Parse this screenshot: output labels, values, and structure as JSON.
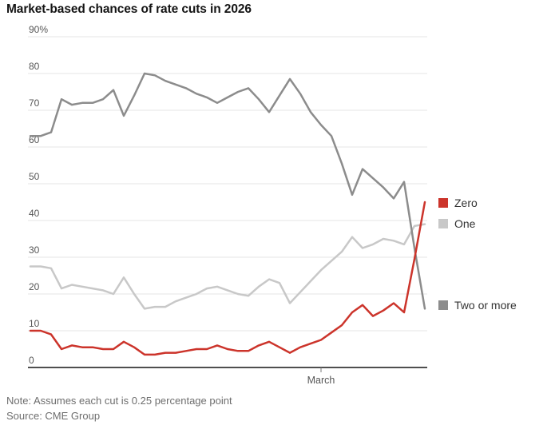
{
  "title": "Market-based chances of rate cuts in 2026",
  "note": "Note: Assumes each cut is 0.25 percentage point",
  "source": "Source: CME Group",
  "legend": {
    "items": [
      {
        "label": "Zero",
        "color": "#cc342b"
      },
      {
        "label": "One",
        "color": "#c8c8c8"
      },
      {
        "label": "Two or more",
        "color": "#8c8c8c"
      }
    ]
  },
  "chart_data": {
    "type": "line",
    "title": "Market-based chances of rate cuts in 2026",
    "ylabel": "",
    "xlabel": "",
    "ylim": [
      0,
      90
    ],
    "y_ticks": [
      0,
      10,
      20,
      30,
      40,
      50,
      60,
      70,
      80,
      90
    ],
    "y_top_tick_suffix": "%",
    "grid": "horizontal",
    "legend_position": "right",
    "n_points": 39,
    "x_tick_labels": [
      {
        "label": "March",
        "index": 28
      }
    ],
    "series": [
      {
        "name": "Zero",
        "color": "#cc342b",
        "values": [
          10,
          10,
          9,
          5,
          6,
          5.5,
          5.5,
          5,
          5,
          7,
          5.5,
          3.5,
          3.5,
          4,
          4,
          4.5,
          5,
          5,
          6,
          5,
          4.5,
          4.5,
          6,
          7,
          5.5,
          4,
          5.5,
          6.5,
          7.5,
          9.5,
          11.5,
          15,
          17,
          14,
          15.5,
          17.5,
          15,
          29.5,
          45
        ]
      },
      {
        "name": "One",
        "color": "#c8c8c8",
        "values": [
          27.5,
          27.5,
          27,
          21.5,
          22.5,
          22,
          21.5,
          21,
          20,
          24.5,
          20,
          16,
          16.5,
          16.5,
          18,
          19,
          20,
          21.5,
          22,
          21,
          20,
          19.5,
          22,
          24,
          23,
          17.5,
          20.5,
          23.5,
          26.5,
          29,
          31.5,
          35.5,
          32.5,
          33.5,
          35,
          34.5,
          33.5,
          38.5,
          39
        ]
      },
      {
        "name": "Two or more",
        "color": "#8c8c8c",
        "values": [
          63,
          63,
          64,
          73,
          71.5,
          72,
          72,
          73,
          75.5,
          68.5,
          74,
          80,
          79.5,
          78,
          77,
          76,
          74.5,
          73.5,
          72,
          73.5,
          75,
          76,
          73,
          69.5,
          74,
          78.5,
          74.5,
          69.5,
          66,
          63,
          55.5,
          47,
          54,
          51.5,
          49,
          46,
          50.5,
          32.5,
          16
        ]
      }
    ]
  }
}
